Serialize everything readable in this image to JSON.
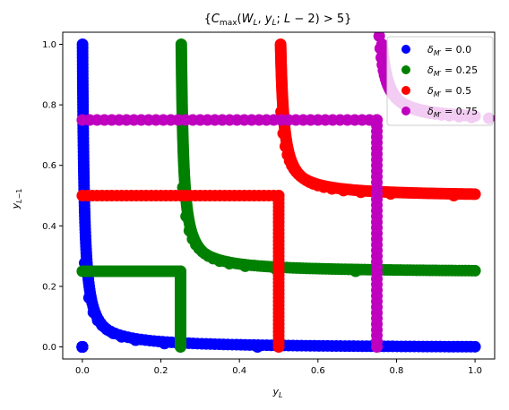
{
  "chart_data": {
    "type": "scatter",
    "title": "{C_max(W_L, y_L; L−2) > 5}",
    "xlabel": "y_L",
    "ylabel": "y_{L−1}",
    "xlim": [
      -0.05,
      1.05
    ],
    "ylim": [
      -0.04,
      1.04
    ],
    "xticks": [
      0.0,
      0.2,
      0.4,
      0.6,
      0.8,
      1.0
    ],
    "yticks": [
      0.0,
      0.2,
      0.4,
      0.6,
      0.8,
      1.0
    ],
    "xtick_labels": [
      "0.0",
      "0.2",
      "0.4",
      "0.6",
      "0.8",
      "1.0"
    ],
    "ytick_labels": [
      "0.0",
      "0.2",
      "0.4",
      "0.6",
      "0.8",
      "1.0"
    ],
    "grid": false,
    "legend_position": "upper-right",
    "series": [
      {
        "name": "δ_{M'} = 0.0",
        "delta": 0.0,
        "color": "#0000ff"
      },
      {
        "name": "δ_{M'} = 0.25",
        "delta": 0.25,
        "color": "#008000"
      },
      {
        "name": "δ_{M'} = 0.5",
        "delta": 0.5,
        "color": "#ff0000"
      },
      {
        "name": "δ_{M'} = 0.75",
        "delta": 0.75,
        "color": "#bf00bf"
      }
    ]
  }
}
